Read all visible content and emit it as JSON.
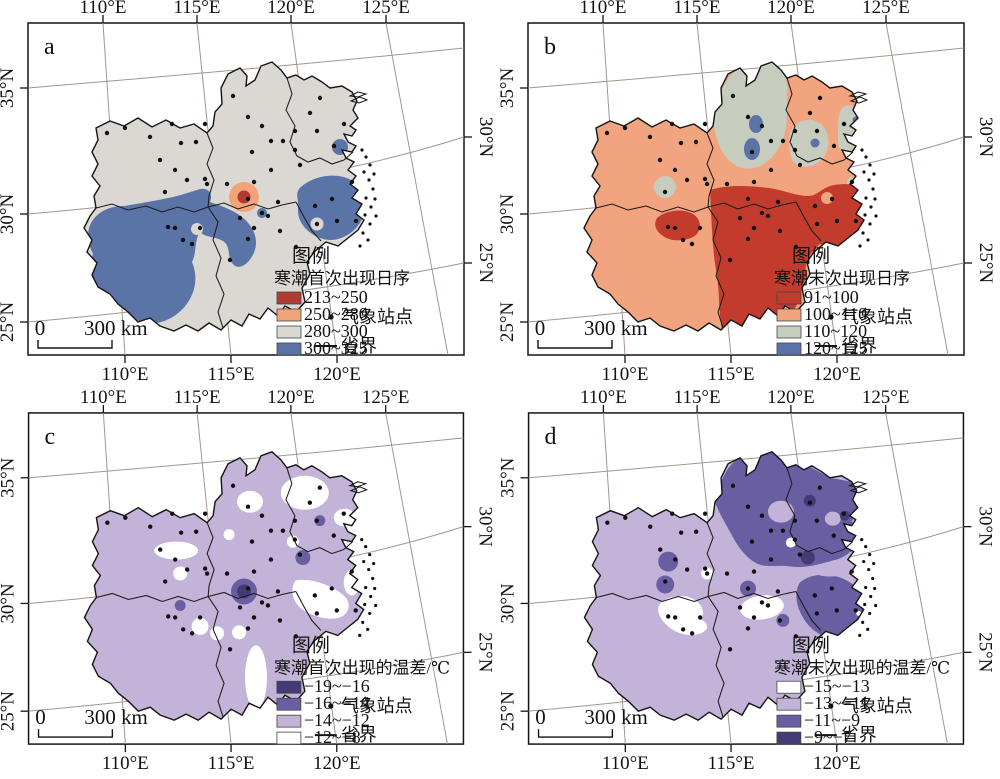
{
  "figure": {
    "axis": {
      "top": [
        "110°E",
        "115°E",
        "120°E",
        "125°E"
      ],
      "bottom": [
        "110°E",
        "115°E",
        "120°E"
      ],
      "left": [
        "35°N",
        "30°N",
        "25°N"
      ],
      "right": [
        "30°N",
        "25°N"
      ]
    },
    "scale_bar": {
      "zero": "0",
      "label": "300 km"
    },
    "panels": [
      {
        "letter": "a",
        "legend_title": "图例",
        "legend_subtitle": "寒潮首次出现日序",
        "classes": [
          {
            "label": "213~250",
            "color": "#b23b30"
          },
          {
            "label": "250~280",
            "color": "#f2a478"
          },
          {
            "label": "280~300",
            "color": "#dbd7d3"
          },
          {
            "label": "300~325",
            "color": "#5b74a7"
          }
        ],
        "station_label": "气象站点",
        "boundary_label": "省界"
      },
      {
        "letter": "b",
        "legend_title": "图例",
        "legend_subtitle": "寒潮末次出现日序",
        "classes": [
          {
            "label": "91~100",
            "color": "#c23b2c"
          },
          {
            "label": "100~110",
            "color": "#f1a47e"
          },
          {
            "label": "110~120",
            "color": "#c6cdbe"
          },
          {
            "label": "120~125",
            "color": "#5b74a7"
          }
        ],
        "station_label": "气象站点",
        "boundary_label": "省界"
      },
      {
        "letter": "c",
        "legend_title": "图例",
        "legend_subtitle": "寒潮首次出现的温差/℃",
        "classes": [
          {
            "label": "−19~−16",
            "color": "#453a78"
          },
          {
            "label": "−16~−14",
            "color": "#695ea1"
          },
          {
            "label": "−14~−12",
            "color": "#c4b3d8"
          },
          {
            "label": "−12~−8",
            "color": "#ffffff"
          }
        ],
        "station_label": "气象站点",
        "boundary_label": "省界"
      },
      {
        "letter": "d",
        "legend_title": "图例",
        "legend_subtitle": "寒潮末次出现的温差/℃",
        "classes": [
          {
            "label": "−15~−13",
            "color": "#ffffff"
          },
          {
            "label": "−13~−11",
            "color": "#c4b3d8"
          },
          {
            "label": "−11~−9",
            "color": "#695ea1"
          },
          {
            "label": "−9~−7",
            "color": "#453a78"
          }
        ],
        "station_label": "气象站点",
        "boundary_label": "省界"
      }
    ]
  }
}
